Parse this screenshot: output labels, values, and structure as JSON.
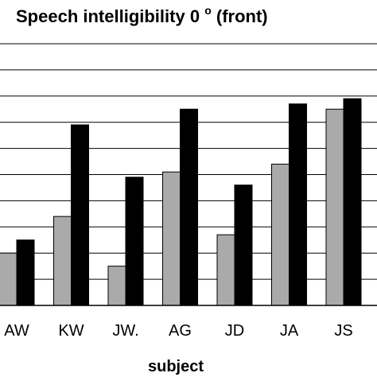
{
  "chart_data": {
    "type": "bar",
    "title": "Speech intelligibility 0",
    "title_superscript": "o",
    "title_suffix": " (front)",
    "xlabel": "subject",
    "ylabel": "",
    "categories": [
      "AW",
      "KW",
      "JW.",
      "AG",
      "JD",
      "JA",
      "JS"
    ],
    "series": [
      {
        "color": "#aaaaaa",
        "values": [
          20,
          34,
          15,
          51,
          27,
          54,
          75
        ]
      },
      {
        "color": "#000000",
        "values": [
          25,
          69,
          49,
          75,
          46,
          77,
          79
        ]
      }
    ],
    "ylim": [
      0,
      100
    ],
    "grid": true
  }
}
